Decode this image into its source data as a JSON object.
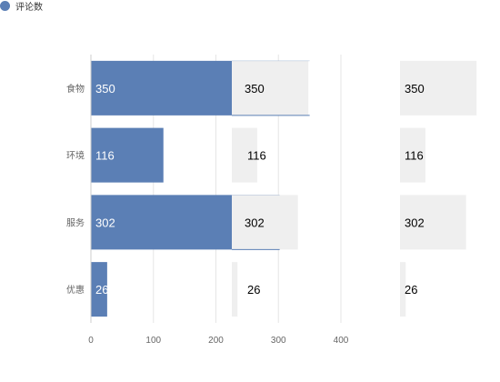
{
  "legend": {
    "label": "评论数",
    "color": "#5b7fb5"
  },
  "chart_data": {
    "type": "bar",
    "orientation": "horizontal",
    "categories": [
      "食物",
      "环境",
      "服务",
      "优惠"
    ],
    "series": [
      {
        "name": "评论数",
        "values": [
          350,
          116,
          302,
          26
        ],
        "color": "#5b7fb5"
      }
    ],
    "xticks": [
      0,
      100,
      200,
      300,
      400
    ],
    "xlim": [
      0,
      400
    ],
    "grid": "vertical",
    "legend_position": "top-left",
    "overlays": {
      "middle_shadow_values": [
        350,
        116,
        302,
        26
      ],
      "right_shadow_values": [
        350,
        116,
        302,
        26
      ],
      "shadow_color": "#efefef",
      "accent_outline_color": "#5b7fb5"
    }
  }
}
